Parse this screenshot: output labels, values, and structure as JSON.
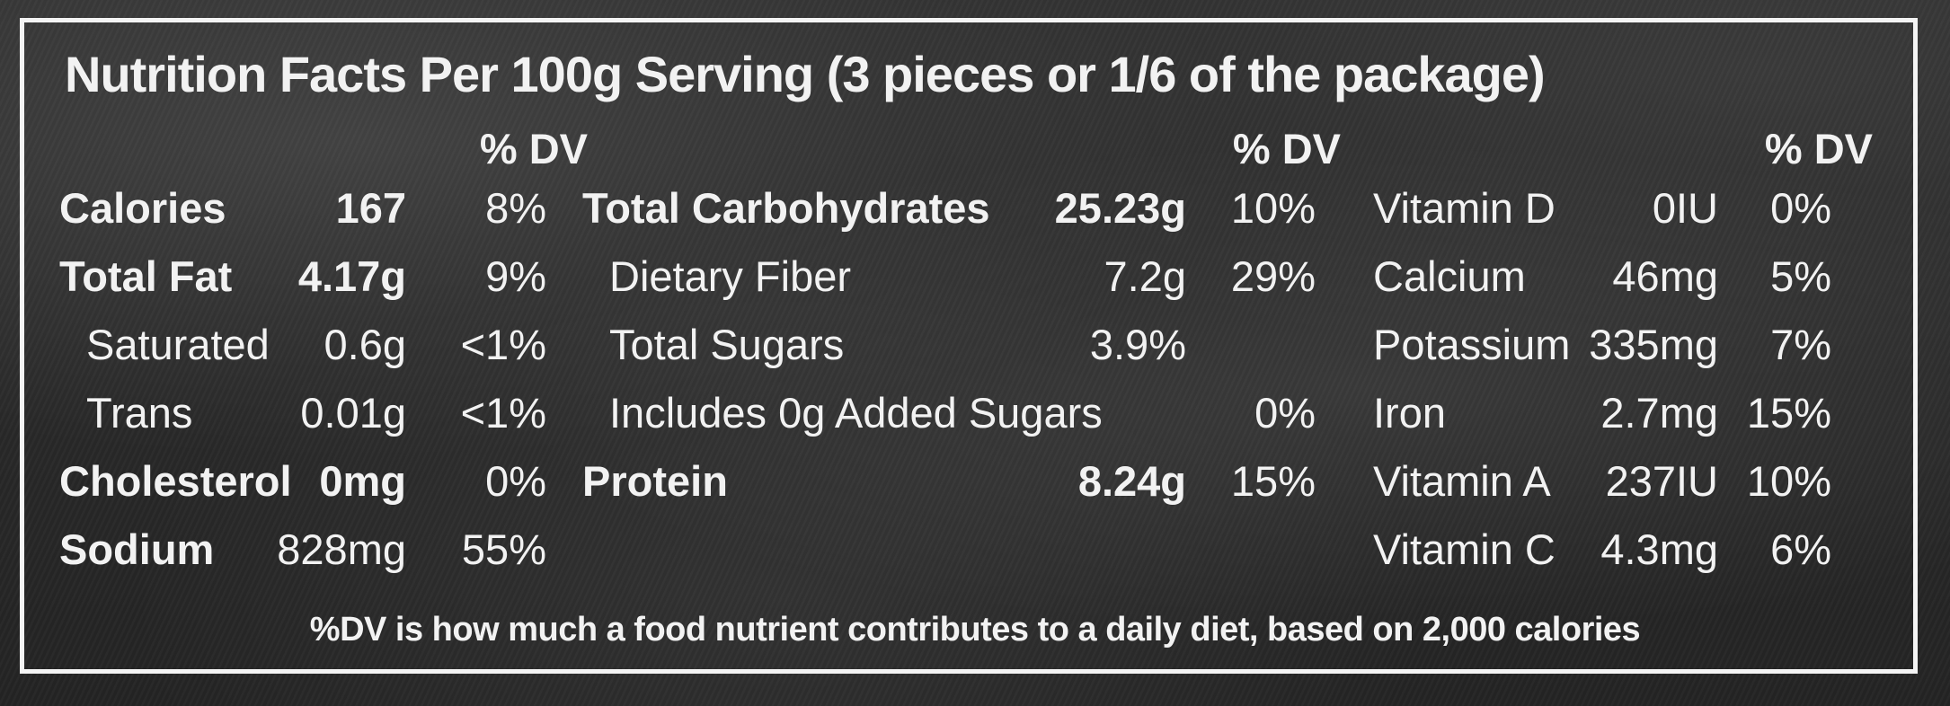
{
  "title": "Nutrition Facts Per 100g Serving (3 pieces or 1/6 of the package)",
  "dv_header": "% DV",
  "footnote": "%DV is how much a food nutrient contributes to a daily diet, based on 2,000 calories",
  "col1": [
    {
      "label": "Calories",
      "amount": "167",
      "dv": "8%"
    },
    {
      "label": "Total Fat",
      "amount": "4.17g",
      "dv": "9%"
    },
    {
      "label": "Saturated",
      "amount": "0.6g",
      "dv": "<1%"
    },
    {
      "label": "Trans",
      "amount": "0.01g",
      "dv": "<1%"
    },
    {
      "label": "Cholesterol",
      "amount": "0mg",
      "dv": "0%"
    },
    {
      "label": "Sodium",
      "amount": "828mg",
      "dv": "55%"
    }
  ],
  "col2": [
    {
      "label": "Total Carbohydrates",
      "amount": "25.23g",
      "dv": "10%"
    },
    {
      "label": "Dietary Fiber",
      "amount": "7.2g",
      "dv": "29%"
    },
    {
      "label": "Total Sugars",
      "amount": "3.9%",
      "dv": ""
    },
    {
      "label": "Includes 0g Added Sugars",
      "amount": "",
      "dv": "0%"
    },
    {
      "label": "Protein",
      "amount": "8.24g",
      "dv": "15%"
    }
  ],
  "col3": [
    {
      "label": "Vitamin D",
      "amount": "0IU",
      "dv": "0%"
    },
    {
      "label": "Calcium",
      "amount": "46mg",
      "dv": "5%"
    },
    {
      "label": "Potassium",
      "amount": "335mg",
      "dv": "7%"
    },
    {
      "label": "Iron",
      "amount": "2.7mg",
      "dv": "15%"
    },
    {
      "label": "Vitamin A",
      "amount": "237IU",
      "dv": "10%"
    },
    {
      "label": "Vitamin C",
      "amount": "4.3mg",
      "dv": "6%"
    }
  ]
}
